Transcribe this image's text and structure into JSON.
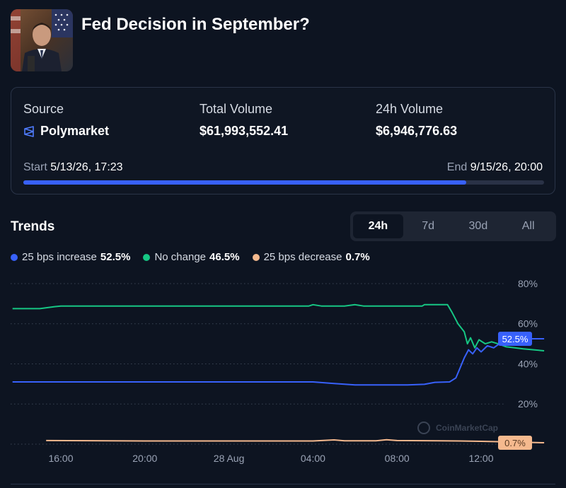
{
  "market": {
    "title": "Fed Decision in September?"
  },
  "stats": {
    "source_label": "Source",
    "source_value": "Polymarket",
    "total_volume_label": "Total Volume",
    "total_volume_value": "$61,993,552.41",
    "volume_24h_label": "24h Volume",
    "volume_24h_value": "$6,946,776.63",
    "start_label": "Start",
    "start_value": "5/13/26, 17:23",
    "end_label": "End",
    "end_value": "9/15/26, 20:00",
    "progress_fraction": 0.85
  },
  "trends": {
    "title": "Trends",
    "tabs": [
      "24h",
      "7d",
      "30d",
      "All"
    ],
    "active_tab": "24h",
    "legend": [
      {
        "name": "25 bps increase",
        "value": "52.5%",
        "color": "#3861fb"
      },
      {
        "name": "No change",
        "value": "46.5%",
        "color": "#16c784"
      },
      {
        "name": "25 bps decrease",
        "value": "0.7%",
        "color": "#f5b98e"
      }
    ]
  },
  "chart_data": {
    "type": "line",
    "x_ticks": [
      "16:00",
      "20:00",
      "28 Aug",
      "04:00",
      "08:00",
      "12:00"
    ],
    "y_ticks": [
      "80%",
      "60%",
      "40%",
      "20%"
    ],
    "ylim": [
      0,
      80
    ],
    "grid": true,
    "watermark": "CoinMarketCap",
    "x_unit": "hours from 16:00",
    "series": [
      {
        "name": "25 bps increase",
        "color": "#3861fb",
        "end_label": "52.5%",
        "points": [
          [
            -2.3,
            31
          ],
          [
            0,
            31
          ],
          [
            4,
            31
          ],
          [
            8,
            31
          ],
          [
            12,
            31
          ],
          [
            13,
            30.2
          ],
          [
            14,
            29.5
          ],
          [
            15,
            29.5
          ],
          [
            16,
            29.5
          ],
          [
            16.5,
            29.5
          ],
          [
            17.3,
            29.8
          ],
          [
            17.8,
            30.8
          ],
          [
            18.5,
            31
          ],
          [
            18.8,
            33
          ],
          [
            19,
            38
          ],
          [
            19.2,
            43
          ],
          [
            19.4,
            47
          ],
          [
            19.6,
            45
          ],
          [
            19.8,
            48
          ],
          [
            20,
            46
          ],
          [
            20.3,
            49
          ],
          [
            20.6,
            48
          ],
          [
            21,
            51
          ],
          [
            21.4,
            51
          ],
          [
            21.7,
            52.5
          ],
          [
            23,
            52.5
          ]
        ]
      },
      {
        "name": "No change",
        "color": "#16c784",
        "end_label": "",
        "points": [
          [
            -2.3,
            67.5
          ],
          [
            -1,
            67.5
          ],
          [
            -0.3,
            68.5
          ],
          [
            0,
            68.8
          ],
          [
            4,
            68.8
          ],
          [
            8,
            68.8
          ],
          [
            11.8,
            68.8
          ],
          [
            12,
            69.5
          ],
          [
            12.4,
            68.8
          ],
          [
            13.5,
            68.8
          ],
          [
            14,
            69.5
          ],
          [
            14.4,
            68.8
          ],
          [
            16.5,
            68.8
          ],
          [
            17.2,
            68.8
          ],
          [
            17.3,
            69.5
          ],
          [
            18.4,
            69.5
          ],
          [
            18.6,
            66
          ],
          [
            18.9,
            60
          ],
          [
            19.2,
            56
          ],
          [
            19.35,
            50
          ],
          [
            19.5,
            53
          ],
          [
            19.7,
            48
          ],
          [
            19.9,
            52
          ],
          [
            20.2,
            50
          ],
          [
            20.5,
            51
          ],
          [
            20.8,
            50
          ],
          [
            21.2,
            48.5
          ],
          [
            21.6,
            48
          ],
          [
            22,
            47.5
          ],
          [
            23,
            46.5
          ]
        ]
      },
      {
        "name": "25 bps decrease",
        "color": "#f5b98e",
        "end_label": "0.7%",
        "points": [
          [
            -0.7,
            1.8
          ],
          [
            4,
            1.6
          ],
          [
            8,
            1.6
          ],
          [
            12,
            1.6
          ],
          [
            13,
            2.1
          ],
          [
            13.5,
            1.7
          ],
          [
            15,
            1.7
          ],
          [
            15.5,
            2.2
          ],
          [
            16,
            1.8
          ],
          [
            18,
            1.7
          ],
          [
            19,
            1.6
          ],
          [
            20,
            1.4
          ],
          [
            21,
            1.2
          ],
          [
            23,
            0.7
          ]
        ]
      }
    ]
  }
}
